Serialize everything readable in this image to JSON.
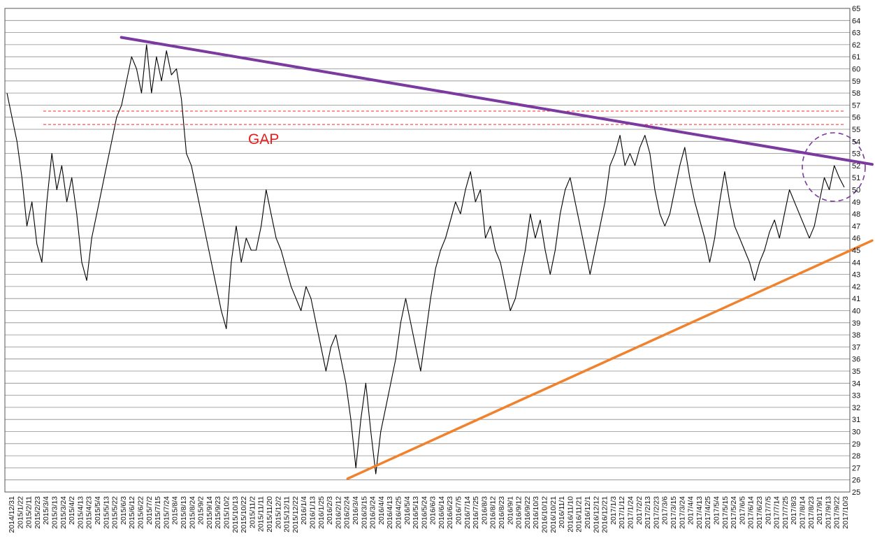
{
  "chart_data": {
    "type": "line",
    "title": "",
    "xlabel": "",
    "ylabel": "",
    "ylim": [
      25,
      65
    ],
    "y_axis_position": "right",
    "grid": "horizontal",
    "y_ticks": [
      25,
      26,
      27,
      28,
      29,
      30,
      31,
      32,
      33,
      34,
      35,
      36,
      37,
      38,
      39,
      40,
      41,
      42,
      43,
      44,
      45,
      46,
      47,
      48,
      49,
      50,
      51,
      52,
      53,
      54,
      55,
      56,
      57,
      58,
      59,
      60,
      61,
      62,
      63,
      64,
      65
    ],
    "x_tick_labels": [
      "2014/12/31",
      "2015/1/22",
      "2015/2/11",
      "2015/2/23",
      "2015/3/4",
      "2015/3/13",
      "2015/3/24",
      "2015/4/2",
      "2015/4/13",
      "2015/4/23",
      "2015/5/4",
      "2015/5/13",
      "2015/5/22",
      "2015/6/3",
      "2015/6/12",
      "2015/6/22",
      "2015/7/2",
      "2015/7/15",
      "2015/7/24",
      "2015/8/4",
      "2015/8/13",
      "2015/8/24",
      "2015/9/2",
      "2015/9/14",
      "2015/9/23",
      "2015/10/2",
      "2015/10/13",
      "2015/10/22",
      "2015/11/2",
      "2015/11/11",
      "2015/11/20",
      "2015/12/2",
      "2015/12/11",
      "2015/12/22",
      "2016/1/4",
      "2016/1/13",
      "2016/1/25",
      "2016/2/3",
      "2016/2/12",
      "2016/2/24",
      "2016/3/4",
      "2016/3/15",
      "2016/3/24",
      "2016/4/4",
      "2016/4/13",
      "2016/4/25",
      "2016/5/4",
      "2016/5/13",
      "2016/5/24",
      "2016/6/3",
      "2016/6/14",
      "2016/6/23",
      "2016/7/5",
      "2016/7/14",
      "2016/7/25",
      "2016/8/3",
      "2016/8/12",
      "2016/8/23",
      "2016/9/1",
      "2016/9/12",
      "2016/9/22",
      "2016/10/3",
      "2016/10/12",
      "2016/10/21",
      "2016/11/1",
      "2016/11/10",
      "2016/11/21",
      "2016/12/1",
      "2016/12/12",
      "2016/12/21",
      "2017/1/3",
      "2017/1/12",
      "2017/1/24",
      "2017/2/2",
      "2017/2/13",
      "2017/2/23",
      "2017/3/6",
      "2017/3/15",
      "2017/3/24",
      "2017/4/4",
      "2017/4/13",
      "2017/4/25",
      "2017/5/4",
      "2017/5/15",
      "2017/5/24",
      "2017/6/5",
      "2017/6/14",
      "2017/6/23",
      "2017/7/5",
      "2017/7/14",
      "2017/7/25",
      "2017/8/3",
      "2017/8/14",
      "2017/8/23",
      "2017/9/1",
      "2017/9/13",
      "2017/9/22",
      "2017/10/3"
    ],
    "series": [
      {
        "points": [
          [
            0,
            58
          ],
          [
            1,
            56
          ],
          [
            2,
            54
          ],
          [
            3,
            51
          ],
          [
            4,
            47
          ],
          [
            5,
            49
          ],
          [
            6,
            45.5
          ],
          [
            7,
            44
          ],
          [
            8,
            49
          ],
          [
            9,
            53
          ],
          [
            10,
            50
          ],
          [
            11,
            52
          ],
          [
            12,
            49
          ],
          [
            13,
            51
          ],
          [
            14,
            48
          ],
          [
            15,
            44
          ],
          [
            16,
            42.5
          ],
          [
            17,
            46
          ],
          [
            18,
            48
          ],
          [
            19,
            50
          ],
          [
            20,
            52
          ],
          [
            21,
            54
          ],
          [
            22,
            56
          ],
          [
            23,
            57
          ],
          [
            24,
            59
          ],
          [
            25,
            61
          ],
          [
            26,
            60
          ],
          [
            27,
            58
          ],
          [
            28,
            62
          ],
          [
            29,
            58
          ],
          [
            30,
            61
          ],
          [
            31,
            59
          ],
          [
            32,
            61.5
          ],
          [
            33,
            59.5
          ],
          [
            34,
            60
          ],
          [
            35,
            57.5
          ],
          [
            36,
            53
          ],
          [
            37,
            52
          ],
          [
            38,
            50
          ],
          [
            39,
            48
          ],
          [
            40,
            46
          ],
          [
            41,
            44
          ],
          [
            42,
            42
          ],
          [
            43,
            40
          ],
          [
            44,
            38.5
          ],
          [
            45,
            44
          ],
          [
            46,
            47
          ],
          [
            47,
            44
          ],
          [
            48,
            46
          ],
          [
            49,
            45
          ],
          [
            50,
            45
          ],
          [
            51,
            47
          ],
          [
            52,
            50
          ],
          [
            53,
            48
          ],
          [
            54,
            46
          ],
          [
            55,
            45
          ],
          [
            56,
            43.5
          ],
          [
            57,
            42
          ],
          [
            58,
            41
          ],
          [
            59,
            40
          ],
          [
            60,
            42
          ],
          [
            61,
            41
          ],
          [
            62,
            39
          ],
          [
            63,
            37
          ],
          [
            64,
            35
          ],
          [
            65,
            37
          ],
          [
            66,
            38
          ],
          [
            67,
            36
          ],
          [
            68,
            34
          ],
          [
            69,
            31
          ],
          [
            70,
            27
          ],
          [
            71,
            31
          ],
          [
            72,
            34
          ],
          [
            73,
            30
          ],
          [
            74,
            26.5
          ],
          [
            75,
            30
          ],
          [
            76,
            32
          ],
          [
            77,
            34
          ],
          [
            78,
            36
          ],
          [
            79,
            39
          ],
          [
            80,
            41
          ],
          [
            81,
            39
          ],
          [
            82,
            37
          ],
          [
            83,
            35
          ],
          [
            84,
            38
          ],
          [
            85,
            41
          ],
          [
            86,
            43.5
          ],
          [
            87,
            45
          ],
          [
            88,
            46
          ],
          [
            89,
            47.5
          ],
          [
            90,
            49
          ],
          [
            91,
            48
          ],
          [
            92,
            50
          ],
          [
            93,
            51.5
          ],
          [
            94,
            49
          ],
          [
            95,
            50
          ],
          [
            96,
            46
          ],
          [
            97,
            47
          ],
          [
            98,
            45
          ],
          [
            99,
            44
          ],
          [
            100,
            42
          ],
          [
            101,
            40
          ],
          [
            102,
            41
          ],
          [
            103,
            43
          ],
          [
            104,
            45
          ],
          [
            105,
            48
          ],
          [
            106,
            46
          ],
          [
            107,
            47.5
          ],
          [
            108,
            45
          ],
          [
            109,
            43
          ],
          [
            110,
            45
          ],
          [
            111,
            48
          ],
          [
            112,
            50
          ],
          [
            113,
            51
          ],
          [
            114,
            49
          ],
          [
            115,
            47
          ],
          [
            116,
            45
          ],
          [
            117,
            43
          ],
          [
            118,
            45
          ],
          [
            119,
            47
          ],
          [
            120,
            49
          ],
          [
            121,
            52
          ],
          [
            122,
            53
          ],
          [
            123,
            54.5
          ],
          [
            124,
            52
          ],
          [
            125,
            53
          ],
          [
            126,
            52
          ],
          [
            127,
            53.5
          ],
          [
            128,
            54.5
          ],
          [
            129,
            53
          ],
          [
            130,
            50
          ],
          [
            131,
            48
          ],
          [
            132,
            47
          ],
          [
            133,
            48
          ],
          [
            134,
            50
          ],
          [
            135,
            52
          ],
          [
            136,
            53.5
          ],
          [
            137,
            51
          ],
          [
            138,
            49
          ],
          [
            139,
            47.5
          ],
          [
            140,
            46
          ],
          [
            141,
            44
          ],
          [
            142,
            46
          ],
          [
            143,
            49
          ],
          [
            144,
            51.5
          ],
          [
            145,
            49
          ],
          [
            146,
            47
          ],
          [
            147,
            46
          ],
          [
            148,
            45
          ],
          [
            149,
            44
          ],
          [
            150,
            42.5
          ],
          [
            151,
            44
          ],
          [
            152,
            45
          ],
          [
            153,
            46.5
          ],
          [
            154,
            47.5
          ],
          [
            155,
            46
          ],
          [
            156,
            48
          ],
          [
            157,
            50
          ],
          [
            158,
            49
          ],
          [
            159,
            48
          ],
          [
            160,
            47
          ],
          [
            161,
            46
          ],
          [
            162,
            47
          ],
          [
            163,
            49
          ],
          [
            164,
            51
          ],
          [
            165,
            50
          ],
          [
            166,
            52
          ],
          [
            167,
            51
          ],
          [
            168,
            50.2
          ]
        ]
      }
    ],
    "annotations": {
      "gap_label": "GAP",
      "gap_levels": [
        56.5,
        55.4
      ],
      "resistance_line": {
        "color": "#7a3aa0",
        "from": [
          2015.35,
          62.6
        ],
        "to": [
          2017.82,
          52.1
        ]
      },
      "support_line": {
        "color": "#f0822e",
        "from": [
          2016.11,
          26.1
        ],
        "to": [
          2017.82,
          45.8
        ]
      },
      "circle_color": "#7a3aa0"
    }
  }
}
